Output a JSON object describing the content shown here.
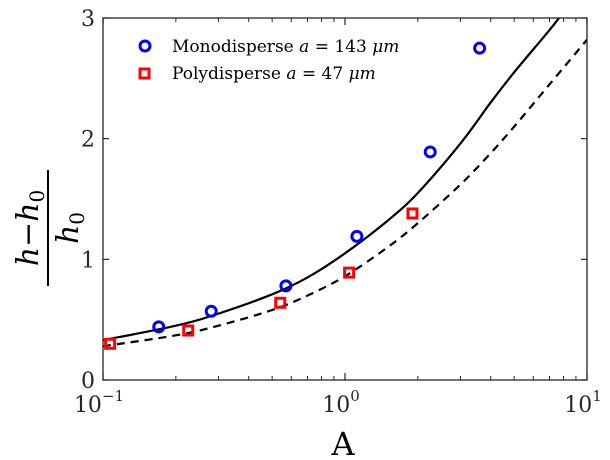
{
  "chart_data": {
    "type": "scatter",
    "xlabel": "A",
    "ylabel": {
      "num_left": "h",
      "num_minus": "−",
      "num_right": "h",
      "num_sub": "0",
      "den": "h",
      "den_sub": "0"
    },
    "xscale": "log",
    "xlim": [
      0.1,
      10
    ],
    "ylim": [
      0,
      3
    ],
    "xticks": [
      {
        "value": 0.1,
        "base": "10",
        "exp": "−1"
      },
      {
        "value": 1,
        "base": "10",
        "exp": "0"
      },
      {
        "value": 10,
        "base": "10",
        "exp": "1"
      }
    ],
    "yticks": [
      {
        "value": 0,
        "label": "0"
      },
      {
        "value": 1,
        "label": "1"
      },
      {
        "value": 2,
        "label": "2"
      },
      {
        "value": 3,
        "label": "3"
      }
    ],
    "grid": false,
    "legend_position": "top-left",
    "series": [
      {
        "name": "Monodisperse",
        "legend_var": "a",
        "legend_eq": "= 143",
        "legend_unit": "μm",
        "marker": "circle",
        "color": "#0000ff",
        "points": [
          {
            "x": 0.17,
            "y": 0.44
          },
          {
            "x": 0.28,
            "y": 0.57
          },
          {
            "x": 0.57,
            "y": 0.78
          },
          {
            "x": 1.12,
            "y": 1.19
          },
          {
            "x": 2.25,
            "y": 1.89
          },
          {
            "x": 3.6,
            "y": 2.75
          }
        ]
      },
      {
        "name": "Polydisperse",
        "legend_var": "a",
        "legend_eq": "= 47",
        "legend_unit": "μm",
        "marker": "square",
        "color": "#ff0000",
        "points": [
          {
            "x": 0.107,
            "y": 0.3
          },
          {
            "x": 0.225,
            "y": 0.41
          },
          {
            "x": 0.54,
            "y": 0.64
          },
          {
            "x": 1.04,
            "y": 0.89
          },
          {
            "x": 1.9,
            "y": 1.38
          }
        ]
      }
    ],
    "fit_lines": [
      {
        "style": "solid",
        "color": "#000000",
        "points": [
          {
            "x": 0.1,
            "y": 0.33
          },
          {
            "x": 0.2,
            "y": 0.45
          },
          {
            "x": 0.3,
            "y": 0.55
          },
          {
            "x": 0.5,
            "y": 0.71
          },
          {
            "x": 0.7,
            "y": 0.85
          },
          {
            "x": 1.0,
            "y": 1.05
          },
          {
            "x": 1.5,
            "y": 1.32
          },
          {
            "x": 2.0,
            "y": 1.55
          },
          {
            "x": 3.0,
            "y": 1.96
          },
          {
            "x": 4.0,
            "y": 2.3
          },
          {
            "x": 5.0,
            "y": 2.55
          },
          {
            "x": 7.0,
            "y": 2.9
          },
          {
            "x": 8.0,
            "y": 3.05
          }
        ]
      },
      {
        "style": "dashed",
        "color": "#000000",
        "points": [
          {
            "x": 0.1,
            "y": 0.28
          },
          {
            "x": 0.2,
            "y": 0.37
          },
          {
            "x": 0.3,
            "y": 0.45
          },
          {
            "x": 0.5,
            "y": 0.58
          },
          {
            "x": 0.7,
            "y": 0.7
          },
          {
            "x": 1.0,
            "y": 0.86
          },
          {
            "x": 1.5,
            "y": 1.1
          },
          {
            "x": 2.0,
            "y": 1.3
          },
          {
            "x": 3.0,
            "y": 1.62
          },
          {
            "x": 4.0,
            "y": 1.88
          },
          {
            "x": 5.0,
            "y": 2.1
          },
          {
            "x": 7.0,
            "y": 2.45
          },
          {
            "x": 10.0,
            "y": 2.82
          }
        ]
      }
    ]
  }
}
